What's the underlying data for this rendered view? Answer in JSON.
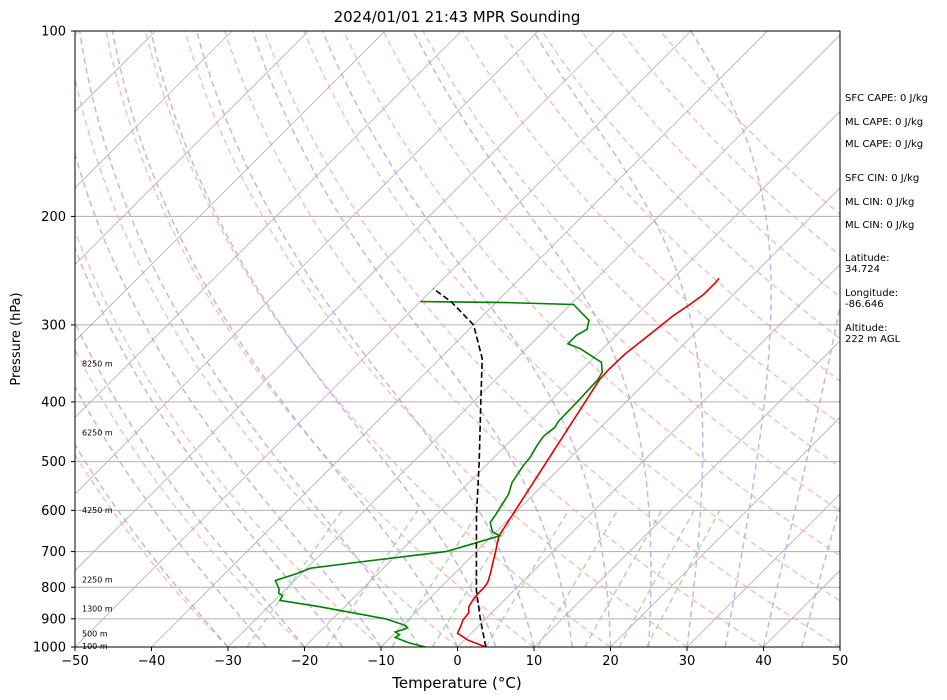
{
  "chart_data": {
    "type": "line",
    "title": "2024/01/01 21:43 MPR Sounding",
    "xlabel": "Temperature (°C)",
    "ylabel": "Pressure (hPa)",
    "xlim": [
      -50,
      50
    ],
    "ylim": [
      1000,
      100
    ],
    "y_scale": "log",
    "x_ticks": [
      "−50",
      "−40",
      "−30",
      "−20",
      "−10",
      "0",
      "10",
      "20",
      "30",
      "40",
      "50"
    ],
    "y_ticks": [
      "100",
      "200",
      "300",
      "400",
      "500",
      "600",
      "700",
      "800",
      "900",
      "1000"
    ],
    "grid": true,
    "height_labels": [
      {
        "p": 1000,
        "text": "100 m"
      },
      {
        "p": 955,
        "text": "500 m"
      },
      {
        "p": 870,
        "text": "1300 m"
      },
      {
        "p": 780,
        "text": "2250 m"
      },
      {
        "p": 602,
        "text": "4250 m"
      },
      {
        "p": 450,
        "text": "6250 m"
      },
      {
        "p": 348,
        "text": "8250 m"
      }
    ],
    "series": [
      {
        "name": "",
        "role": "temperature",
        "color": "#e00000",
        "points": [
          [
            3.7,
            1000
          ],
          [
            0.5,
            975
          ],
          [
            -1.8,
            950
          ],
          [
            -2.3,
            925
          ],
          [
            -2.8,
            905
          ],
          [
            -3.0,
            880
          ],
          [
            -3.8,
            860
          ],
          [
            -4.2,
            835
          ],
          [
            -4.3,
            815
          ],
          [
            -4.3,
            800
          ],
          [
            -4.5,
            785
          ],
          [
            -5.3,
            760
          ],
          [
            -6.2,
            735
          ],
          [
            -7.3,
            705
          ],
          [
            -8.3,
            680
          ],
          [
            -9.1,
            660
          ],
          [
            -16.4,
            368
          ],
          [
            -16.5,
            355
          ],
          [
            -16.4,
            335
          ],
          [
            -15.7,
            310
          ],
          [
            -15.1,
            290
          ],
          [
            -14.4,
            278
          ],
          [
            -13.9,
            268
          ],
          [
            -13.9,
            256
          ],
          [
            -14.0,
            252
          ]
        ]
      },
      {
        "name": "",
        "role": "dewpoint",
        "color": "#008000",
        "points": [
          [
            -4.2,
            1000
          ],
          [
            -6.8,
            985
          ],
          [
            -9.4,
            965
          ],
          [
            -9.2,
            955
          ],
          [
            -10.1,
            945
          ],
          [
            -9.2,
            935
          ],
          [
            -9.1,
            930
          ],
          [
            -9.7,
            922
          ],
          [
            -13.1,
            900
          ],
          [
            -23.3,
            860
          ],
          [
            -29.3,
            840
          ],
          [
            -29.6,
            825
          ],
          [
            -30.4,
            818
          ],
          [
            -30.9,
            805
          ],
          [
            -32.5,
            780
          ],
          [
            -30.6,
            760
          ],
          [
            -29.5,
            745
          ],
          [
            -23.0,
            725
          ],
          [
            -14.0,
            700
          ],
          [
            -11.5,
            680
          ],
          [
            -9.0,
            660
          ],
          [
            -10.5,
            650
          ],
          [
            -12.0,
            628
          ],
          [
            -12.3,
            610
          ],
          [
            -13.3,
            565
          ],
          [
            -14.4,
            540
          ],
          [
            -15.1,
            508
          ],
          [
            -15.3,
            492
          ],
          [
            -15.9,
            472
          ],
          [
            -16.3,
            455
          ],
          [
            -16.0,
            440
          ],
          [
            -16.3,
            430
          ],
          [
            -16.4,
            400
          ],
          [
            -16.6,
            368
          ],
          [
            -17.0,
            358
          ],
          [
            -18.4,
            345
          ],
          [
            -22.9,
            328
          ],
          [
            -25.2,
            322
          ],
          [
            -25.2,
            312
          ],
          [
            -24.6,
            305
          ],
          [
            -25.5,
            295
          ],
          [
            -29.6,
            278
          ],
          [
            -38.5,
            276
          ],
          [
            -50.0,
            275
          ]
        ]
      },
      {
        "name": "",
        "role": "parcel",
        "color": "#000000",
        "points": [
          [
            3.7,
            1000
          ],
          [
            -0.7,
            900
          ],
          [
            -4.9,
            810
          ],
          [
            -10.0,
            700
          ],
          [
            -14.8,
            610
          ],
          [
            -21.4,
            500
          ],
          [
            -29.0,
            400
          ],
          [
            -34.5,
            340
          ],
          [
            -40.0,
            300
          ],
          [
            -46.0,
            275
          ],
          [
            -50.0,
            262
          ]
        ]
      }
    ]
  },
  "side_panel": {
    "sfc_cape": "SFC CAPE: 0 J/kg",
    "ml_cape_1": "ML CAPE: 0 J/kg",
    "ml_cape_2": "ML CAPE: 0 J/kg",
    "sfc_cin": "SFC CIN: 0 J/kg",
    "ml_cin_1": "ML CIN: 0 J/kg",
    "ml_cin_2": "ML CIN: 0 J/kg",
    "latitude_label": "Latitude:",
    "latitude_value": "34.724",
    "longitude_label": "Longitude:",
    "longitude_value": "-86.646",
    "altitude_label": "Altitude:",
    "altitude_value": "222 m AGL"
  },
  "colors": {
    "isotherm": "#b0b0b0",
    "dry_adiabat": "#f4a6a6",
    "moist_adiabat": "#b0a4f0",
    "mixing_ratio": "#9ccf9c",
    "isobar": "#b0b0b0"
  }
}
